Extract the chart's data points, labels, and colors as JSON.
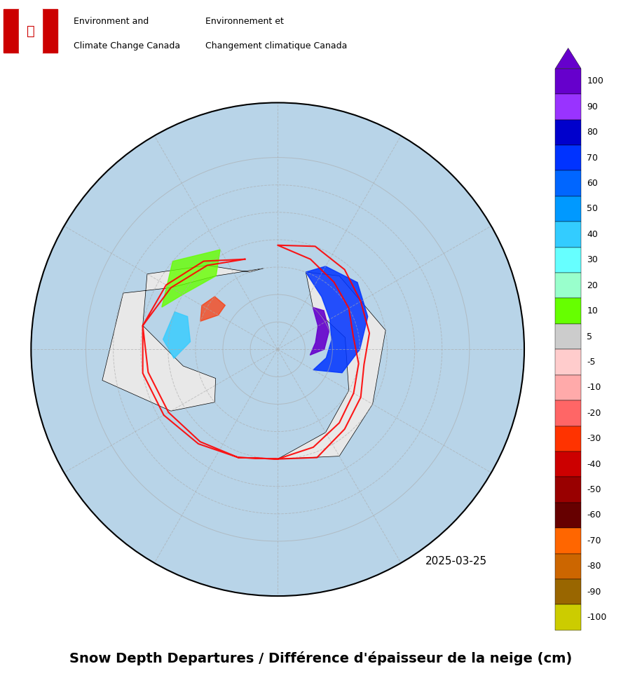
{
  "title": "Snow Depth Departures / Différence d'épaisseur de la neige (cm)",
  "date_label": "2025-03-25",
  "header_en": "Environment and\nClimate Change Canada",
  "header_fr": "Environnement et\nChangement climatique Canada",
  "colorbar_levels": [
    100,
    90,
    80,
    70,
    60,
    50,
    40,
    30,
    20,
    10,
    5,
    -5,
    -10,
    -20,
    -30,
    -40,
    -50,
    -60,
    -70,
    -80,
    -90,
    -100
  ],
  "colorbar_colors": [
    "#6600cc",
    "#9933ff",
    "#0000cc",
    "#0033ff",
    "#0066ff",
    "#0099ff",
    "#33ccff",
    "#66ffff",
    "#99ffcc",
    "#66ff00",
    "#cccccc",
    "#ffcccc",
    "#ffaaaa",
    "#ff6666",
    "#ff3300",
    "#cc0000",
    "#990000",
    "#660000",
    "#ff6600",
    "#cc6600",
    "#996600",
    "#cccc00"
  ],
  "bg_color": "#ffffff",
  "map_bg": "#f0f0f0",
  "fig_width": 9.16,
  "fig_height": 9.77,
  "dpi": 100
}
